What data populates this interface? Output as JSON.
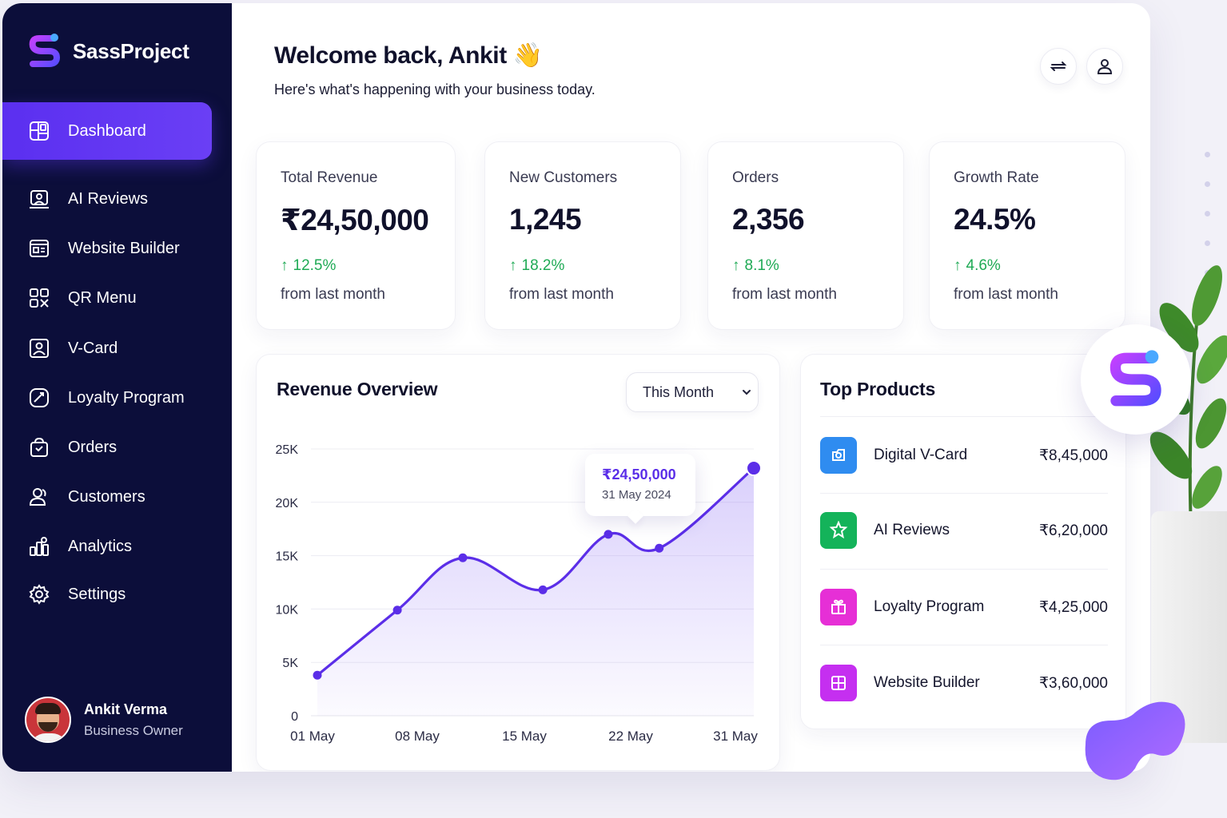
{
  "app": {
    "name": "SassProject"
  },
  "sidebar": {
    "items": [
      {
        "label": "Dashboard",
        "icon": "dashboard-icon",
        "active": true
      },
      {
        "label": "AI Reviews",
        "icon": "ai-reviews-icon"
      },
      {
        "label": "Website Builder",
        "icon": "website-builder-icon"
      },
      {
        "label": "QR Menu",
        "icon": "qr-menu-icon"
      },
      {
        "label": "V-Card",
        "icon": "vcard-icon"
      },
      {
        "label": "Loyalty Program",
        "icon": "loyalty-icon"
      },
      {
        "label": "Orders",
        "icon": "orders-icon"
      },
      {
        "label": "Customers",
        "icon": "customers-icon"
      },
      {
        "label": "Analytics",
        "icon": "analytics-icon"
      },
      {
        "label": "Settings",
        "icon": "settings-icon"
      }
    ],
    "profile": {
      "name": "Ankit Verma",
      "role": "Business Owner"
    }
  },
  "header": {
    "title": "Welcome back, Ankit",
    "emoji": "👋",
    "subtitle": "Here's what's happening with your business today."
  },
  "stats": [
    {
      "label": "Total Revenue",
      "value": "₹24,50,000",
      "change": "12.5%",
      "note": "from last month"
    },
    {
      "label": "New Customers",
      "value": "1,245",
      "change": "18.2%",
      "note": "from last month"
    },
    {
      "label": "Orders",
      "value": "2,356",
      "change": "8.1%",
      "note": "from last month"
    },
    {
      "label": "Growth Rate",
      "value": "24.5%",
      "change": "4.6%",
      "note": "from last month"
    }
  ],
  "revenue": {
    "title": "Revenue Overview",
    "range_label": "This Month",
    "tooltip_value": "₹24,50,000",
    "tooltip_date": "31 May 2024"
  },
  "chart_data": {
    "type": "area",
    "title": "Revenue Overview",
    "x_ticks": [
      "01 May",
      "08 May",
      "15 May",
      "22 May",
      "31 May"
    ],
    "y_ticks": [
      "0",
      "5K",
      "10K",
      "15K",
      "20K",
      "25K"
    ],
    "ylim": [
      0,
      25000
    ],
    "x": [
      1,
      6.5,
      11,
      16.5,
      21,
      24.5,
      31
    ],
    "values": [
      3800,
      9900,
      14800,
      11800,
      17000,
      15700,
      23200
    ],
    "grid": true,
    "line_color": "#5b2ee8",
    "fill_color": "#8b6cf5"
  },
  "top_products": {
    "title": "Top Products",
    "items": [
      {
        "name": "Digital V-Card",
        "value": "₹8,45,000",
        "color": "#2f8cf0",
        "icon": "vcard-product-icon"
      },
      {
        "name": "AI Reviews",
        "value": "₹6,20,000",
        "color": "#14b35a",
        "icon": "star-badge-icon"
      },
      {
        "name": "Loyalty Program",
        "value": "₹4,25,000",
        "color": "#e62fd6",
        "icon": "gift-icon"
      },
      {
        "name": "Website Builder",
        "value": "₹3,60,000",
        "color": "#c52ff0",
        "icon": "layout-icon"
      }
    ]
  },
  "colors": {
    "sidebar": "#0c0e3a",
    "accent": "#5b2ff0",
    "positive": "#1faa55"
  }
}
